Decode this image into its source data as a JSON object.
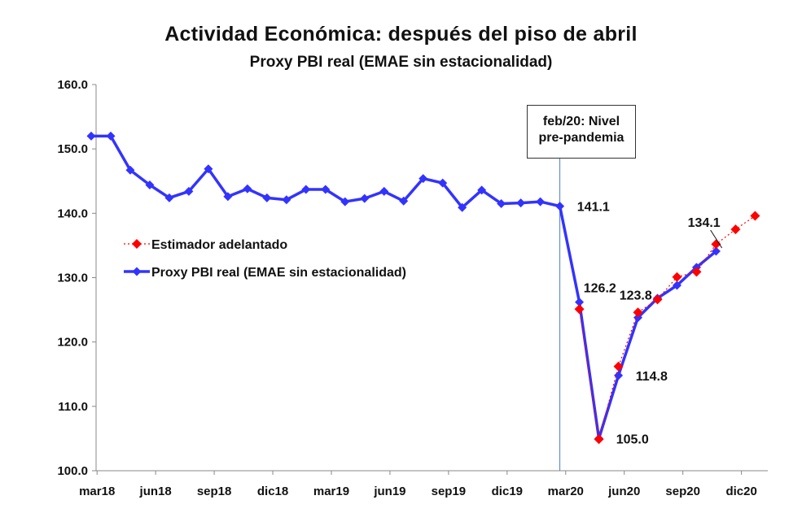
{
  "chart_data": {
    "type": "line",
    "title": "Actividad Económica: después del piso de abril",
    "subtitle": "Proxy PBI real (EMAE sin estacionalidad)",
    "xlabel": "",
    "ylabel": "",
    "ylim": [
      100,
      160
    ],
    "yticks": [
      "100.0",
      "110.0",
      "120.0",
      "130.0",
      "140.0",
      "150.0",
      "160.0"
    ],
    "xticks": [
      {
        "label": "mar18",
        "index": 0
      },
      {
        "label": "jun18",
        "index": 3
      },
      {
        "label": "sep18",
        "index": 6
      },
      {
        "label": "dic18",
        "index": 9
      },
      {
        "label": "mar19",
        "index": 12
      },
      {
        "label": "jun19",
        "index": 15
      },
      {
        "label": "sep19",
        "index": 18
      },
      {
        "label": "dic19",
        "index": 21
      },
      {
        "label": "mar20",
        "index": 24
      },
      {
        "label": "jun20",
        "index": 27
      },
      {
        "label": "sep20",
        "index": 30
      },
      {
        "label": "dic20",
        "index": 33
      }
    ],
    "grid": false,
    "legend_position": "left-middle",
    "series": [
      {
        "name": "Proxy PBI real (EMAE sin estacionalidad)",
        "color": "#3333ff",
        "marker": "diamond",
        "start_index": -0.3,
        "values": [
          152.0,
          152.0,
          146.7,
          144.4,
          142.4,
          143.4,
          146.9,
          142.6,
          143.8,
          142.4,
          142.1,
          143.7,
          143.7,
          141.8,
          142.3,
          143.4,
          141.9,
          145.4,
          144.7,
          140.9,
          143.6,
          141.5,
          141.6,
          141.8,
          141.1,
          126.2,
          105.0,
          114.8,
          123.8,
          126.8,
          128.8,
          131.6,
          134.1
        ]
      },
      {
        "name": "Estimador adelantado",
        "color": "#ff0000",
        "marker": "diamond",
        "line_style": "dotted",
        "start_index": 24.7,
        "values": [
          125.1,
          104.9,
          116.2,
          124.6,
          126.6,
          130.1,
          130.9,
          135.2,
          137.5,
          139.6
        ]
      }
    ],
    "data_labels": [
      {
        "text": "141.1",
        "index": 24,
        "value": 141.1
      },
      {
        "text": "126.2",
        "index": 25,
        "value": 126.2
      },
      {
        "text": "105.0",
        "index": 26,
        "value": 105.0
      },
      {
        "text": "114.8",
        "index": 27,
        "value": 114.8
      },
      {
        "text": "123.8",
        "index": 28,
        "value": 123.8
      },
      {
        "text": "134.1",
        "index": 32,
        "value": 134.1
      }
    ],
    "annotation": {
      "text_line1": "feb/20: Nivel",
      "text_line2": "pre-pandemia",
      "x_index": 23.7
    }
  }
}
